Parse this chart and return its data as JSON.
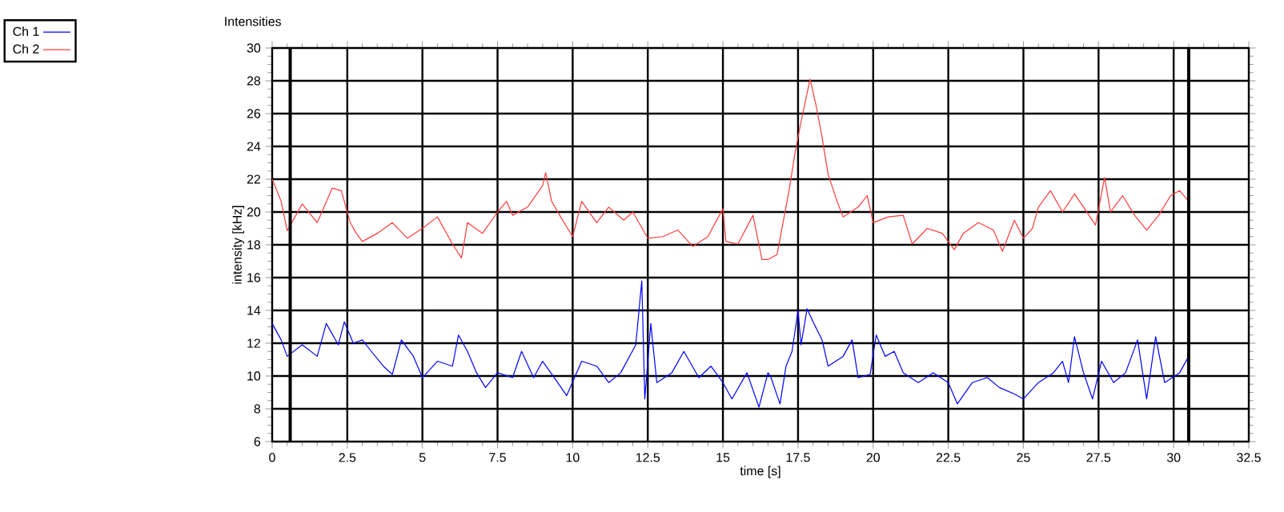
{
  "chart_data": {
    "type": "line",
    "title": "Intensities",
    "xlabel": "time [s]",
    "ylabel": "intensity [kHz]",
    "xlim": [
      0,
      32.5
    ],
    "ylim": [
      6,
      30
    ],
    "xticks": [
      0,
      2.5,
      5,
      7.5,
      10,
      12.5,
      15,
      17.5,
      20,
      22.5,
      25,
      27.5,
      30,
      32.5
    ],
    "yticks": [
      6,
      8,
      10,
      12,
      14,
      16,
      18,
      20,
      22,
      24,
      26,
      28,
      30
    ],
    "grid": true,
    "legend": "top left",
    "ref_lines": [
      {
        "axis": "x",
        "value": 0.6,
        "color": "#000000"
      },
      {
        "axis": "x",
        "value": 30.5,
        "color": "#000000"
      }
    ],
    "series": [
      {
        "name": "Ch 1",
        "color": "#0000ff",
        "x": [
          0,
          0.3,
          0.5,
          1,
          1.5,
          1.8,
          2.2,
          2.4,
          2.7,
          3,
          3.3,
          3.7,
          4,
          4.3,
          4.7,
          5,
          5.5,
          6,
          6.2,
          6.5,
          6.8,
          7.1,
          7.5,
          8,
          8.3,
          8.7,
          9,
          9.5,
          9.8,
          10.3,
          10.8,
          11.2,
          11.6,
          12.1,
          12.3,
          12.4,
          12.6,
          12.8,
          13.3,
          13.7,
          14.2,
          14.6,
          15,
          15.3,
          15.8,
          16.2,
          16.5,
          16.6,
          16.9,
          17.1,
          17.3,
          17.5,
          17.6,
          17.8,
          18.0,
          18.3,
          18.5,
          19,
          19.3,
          19.5,
          19.9,
          20.1,
          20.4,
          20.7,
          21,
          21.5,
          22,
          22.5,
          22.8,
          23.3,
          23.8,
          24.2,
          24.7,
          25,
          25.5,
          26,
          26.3,
          26.5,
          26.7,
          27,
          27.3,
          27.6,
          28,
          28.4,
          28.8,
          29.1,
          29.4,
          29.7,
          30.2,
          30.5
        ],
        "values": [
          13.2,
          12.2,
          11.2,
          11.9,
          11.2,
          13.2,
          11.9,
          13.3,
          12.0,
          12.2,
          11.5,
          10.6,
          10.1,
          12.2,
          11.2,
          9.9,
          10.9,
          10.6,
          12.5,
          11.5,
          10.2,
          9.3,
          10.2,
          9.9,
          11.5,
          9.9,
          10.9,
          9.6,
          8.8,
          10.9,
          10.6,
          9.6,
          10.2,
          11.9,
          15.8,
          8.6,
          13.2,
          9.6,
          10.2,
          11.5,
          9.9,
          10.6,
          9.6,
          8.6,
          10.2,
          8.1,
          10.2,
          9.9,
          8.3,
          10.6,
          11.5,
          14.0,
          11.9,
          14.1,
          13.3,
          12.2,
          10.6,
          11.2,
          12.2,
          9.9,
          10.1,
          12.5,
          11.2,
          11.5,
          10.2,
          9.6,
          10.2,
          9.6,
          8.3,
          9.6,
          9.9,
          9.3,
          8.9,
          8.6,
          9.6,
          10.2,
          10.9,
          9.6,
          12.4,
          10.2,
          8.6,
          10.9,
          9.6,
          10.2,
          12.2,
          8.6,
          12.4,
          9.6,
          10.2,
          11.2
        ]
      },
      {
        "name": "Ch 2",
        "color": "#ff3c3c",
        "x": [
          0,
          0.3,
          0.5,
          1,
          1.5,
          2,
          2.3,
          2.6,
          2.8,
          3,
          3.5,
          4,
          4.5,
          5,
          5.5,
          6,
          6.3,
          6.5,
          7,
          7.5,
          7.8,
          8,
          8.5,
          9,
          9.1,
          9.3,
          9.6,
          10,
          10.3,
          10.8,
          11.2,
          11.7,
          12,
          12.5,
          13,
          13.5,
          14,
          14.5,
          15,
          15.1,
          15.5,
          16,
          16.3,
          16.5,
          16.8,
          17,
          17.2,
          17.4,
          17.6,
          17.9,
          18.1,
          18.3,
          18.5,
          18.8,
          19,
          19.5,
          19.8,
          20,
          20.5,
          21,
          21.3,
          21.8,
          22.3,
          22.7,
          23,
          23.5,
          24,
          24.3,
          24.7,
          25,
          25.3,
          25.5,
          25.9,
          26.3,
          26.7,
          27,
          27.4,
          27.7,
          27.9,
          28.3,
          28.7,
          29.1,
          29.5,
          29.9,
          30.2,
          30.5
        ],
        "values": [
          22.0,
          20.65,
          18.86,
          20.49,
          19.35,
          21.46,
          21.3,
          19.35,
          18.7,
          18.2,
          18.7,
          19.35,
          18.4,
          19.0,
          19.7,
          18.05,
          17.2,
          19.35,
          18.7,
          20.0,
          20.65,
          19.8,
          20.3,
          21.6,
          22.4,
          20.65,
          19.7,
          18.5,
          20.65,
          19.35,
          20.3,
          19.5,
          20.0,
          18.4,
          18.5,
          18.9,
          17.9,
          18.5,
          20.2,
          18.2,
          18.05,
          19.8,
          17.1,
          17.1,
          17.4,
          19.35,
          21.3,
          23.6,
          25.5,
          28.1,
          26.5,
          24.55,
          22.3,
          20.65,
          19.7,
          20.3,
          21.0,
          19.35,
          19.7,
          19.8,
          18.05,
          19.0,
          18.7,
          17.7,
          18.7,
          19.35,
          18.9,
          17.6,
          19.5,
          18.4,
          19.0,
          20.3,
          21.3,
          20.0,
          21.1,
          20.3,
          19.2,
          22.1,
          20.0,
          21.0,
          19.8,
          18.9,
          19.8,
          21.0,
          21.3,
          20.65
        ]
      }
    ]
  }
}
